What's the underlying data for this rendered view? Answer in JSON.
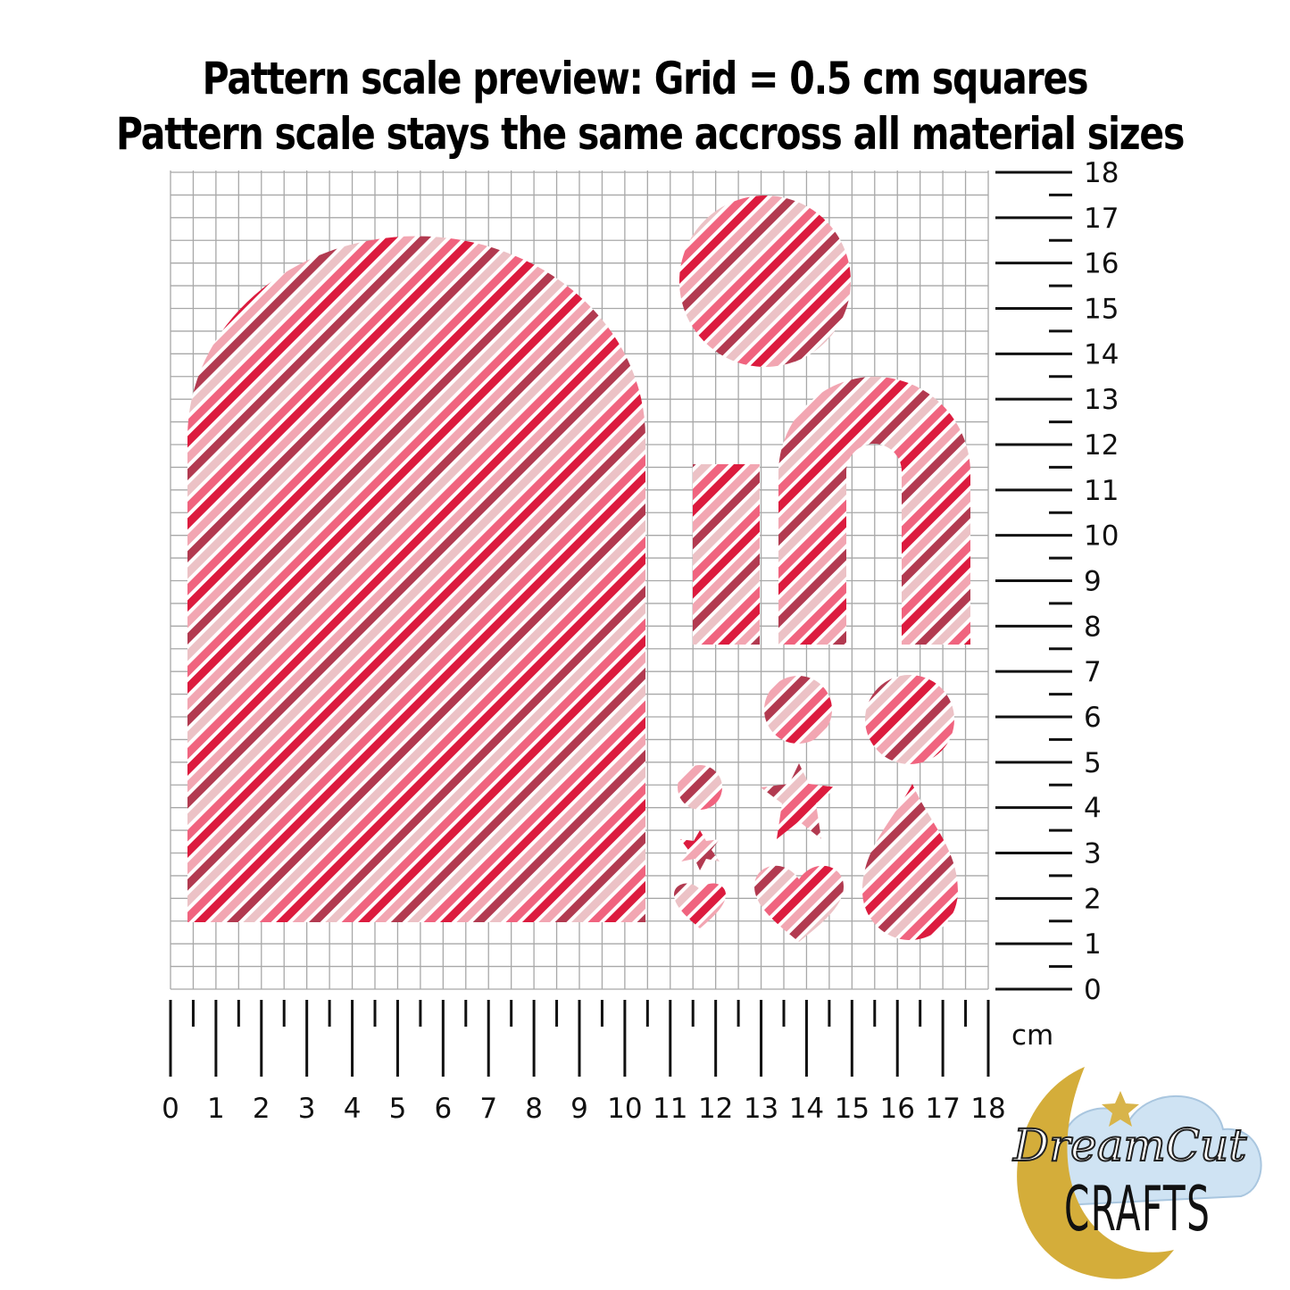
{
  "header": {
    "line1": "Pattern scale preview: Grid = 0.5 cm squares",
    "line2": "Pattern scale stays the same accross all material sizes"
  },
  "ruler": {
    "unit": "cm",
    "x_labels": [
      "0",
      "1",
      "2",
      "3",
      "4",
      "5",
      "6",
      "7",
      "8",
      "9",
      "10",
      "11",
      "12",
      "13",
      "14",
      "15",
      "16",
      "17",
      "18"
    ],
    "y_labels": [
      "0",
      "1",
      "2",
      "3",
      "4",
      "5",
      "6",
      "7",
      "8",
      "9",
      "10",
      "11",
      "12",
      "13",
      "14",
      "15",
      "16",
      "17",
      "18"
    ]
  },
  "pattern": {
    "style": "diagonal stripes",
    "colors": [
      "#b23a50",
      "#ecc2c6",
      "#f0647f",
      "#dc1b3e",
      "#f2a6b2"
    ],
    "gap_color": "#ffffff"
  },
  "grid": {
    "square_cm": 0.5,
    "line_color": "#a8a8a8"
  },
  "logo": {
    "line1": "DreamCut",
    "line2": "CRAFTS",
    "moon_color": "#d4ad3a",
    "cloud_color": "#cfe3f3"
  }
}
